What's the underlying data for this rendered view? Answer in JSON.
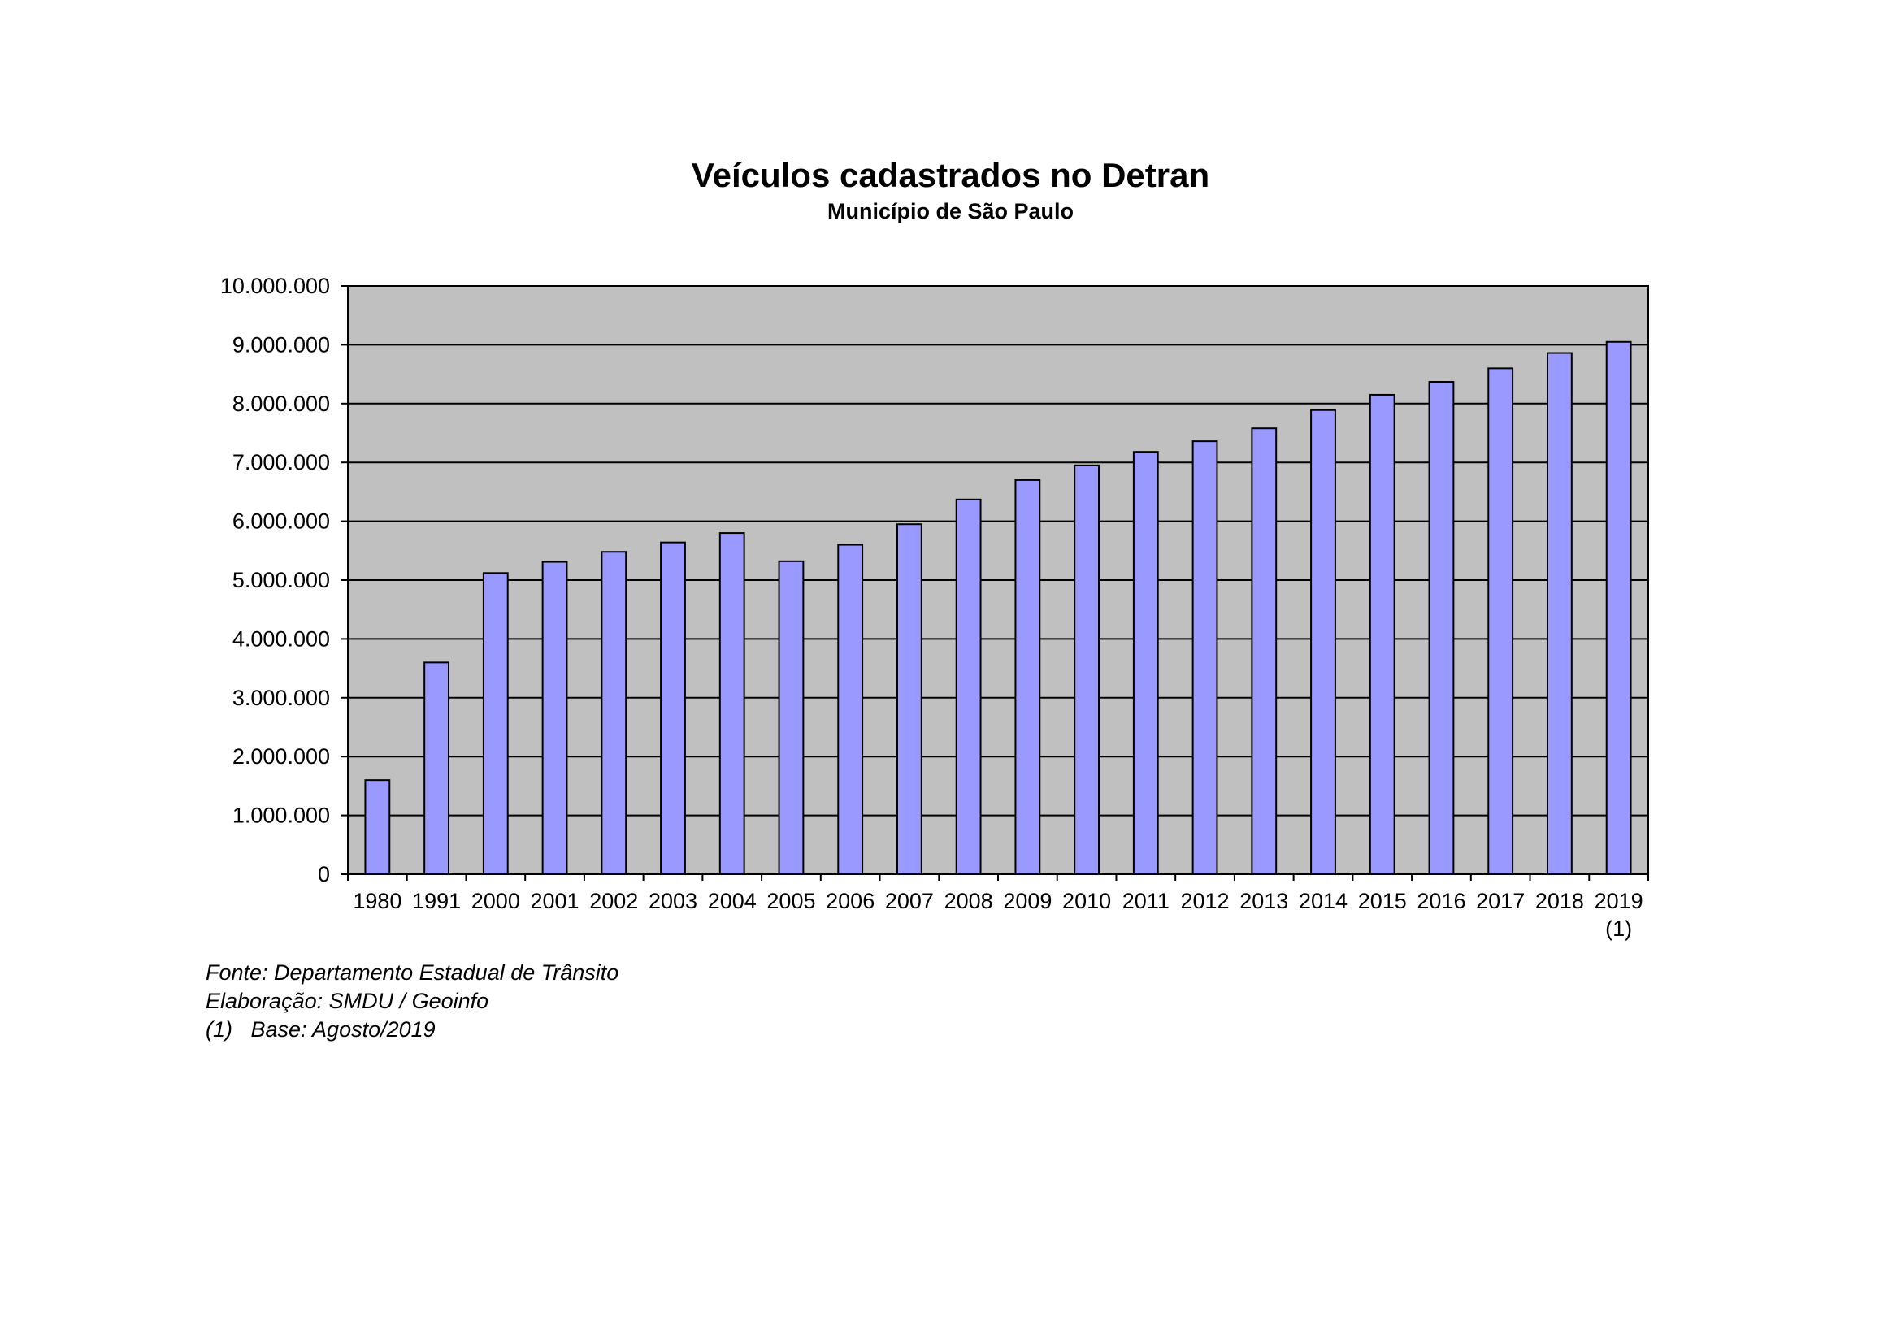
{
  "chart_data": {
    "type": "bar",
    "title": "Veículos cadastrados no Detran",
    "subtitle": "Município de São Paulo",
    "xlabel": "",
    "ylabel": "",
    "ylim": [
      0,
      10000000
    ],
    "yticks": [
      0,
      1000000,
      2000000,
      3000000,
      4000000,
      5000000,
      6000000,
      7000000,
      8000000,
      9000000,
      10000000
    ],
    "ytick_labels": [
      "0",
      "1.000.000",
      "2.000.000",
      "3.000.000",
      "4.000.000",
      "5.000.000",
      "6.000.000",
      "7.000.000",
      "8.000.000",
      "9.000.000",
      "10.000.000"
    ],
    "grid": true,
    "categories": [
      "1980",
      "1991",
      "2000",
      "2001",
      "2002",
      "2003",
      "2004",
      "2005",
      "2006",
      "2007",
      "2008",
      "2009",
      "2010",
      "2011",
      "2012",
      "2013",
      "2014",
      "2015",
      "2016",
      "2017",
      "2018",
      "2019\n(1)"
    ],
    "values": [
      1600000,
      3600000,
      5120000,
      5310000,
      5480000,
      5640000,
      5800000,
      5320000,
      5600000,
      5950000,
      6370000,
      6700000,
      6950000,
      7180000,
      7360000,
      7580000,
      7890000,
      8150000,
      8370000,
      8600000,
      8860000,
      9050000
    ],
    "colors": {
      "bar": "#9999ff",
      "plot_bg": "#c0c0c0",
      "border": "#000000"
    }
  },
  "notes": [
    "Fonte: Departamento Estadual de Trânsito",
    "Elaboração: SMDU / Geoinfo",
    "(1)   Base: Agosto/2019"
  ]
}
